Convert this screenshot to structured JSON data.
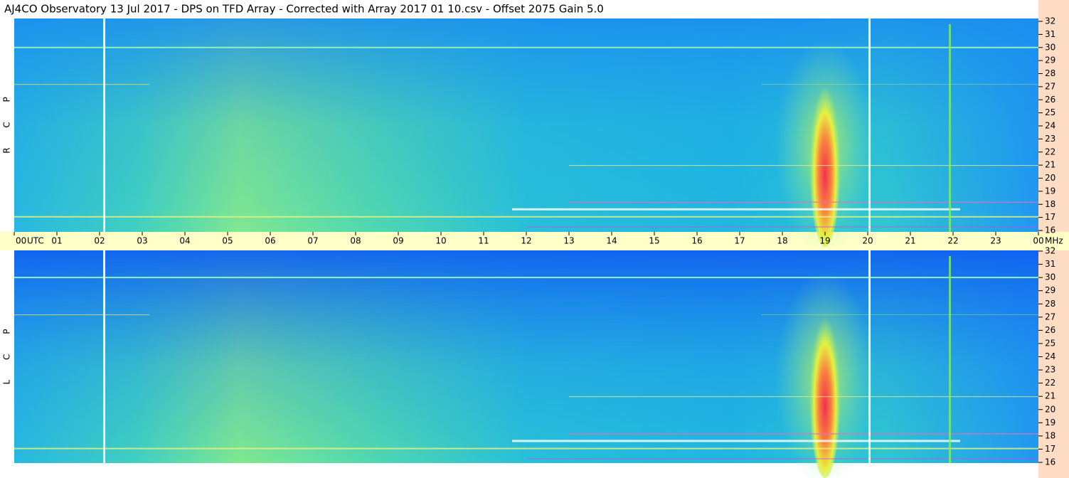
{
  "chart_data": {
    "type": "spectrogram",
    "title": "AJ4CO Observatory  13 Jul 2017  -  DPS on TFD Array  -  Corrected with Array 2017 01 10.csv  -  Offset 2075  Gain 5.0",
    "panels": [
      "R C P",
      "L C P"
    ],
    "xlabel": "UTC",
    "ylabel": "MHz",
    "xlim": [
      0,
      24
    ],
    "xticks": [
      {
        "value": 0,
        "label": "00"
      },
      {
        "value": 1,
        "label": "01"
      },
      {
        "value": 2,
        "label": "02"
      },
      {
        "value": 3,
        "label": "03"
      },
      {
        "value": 4,
        "label": "04"
      },
      {
        "value": 5,
        "label": "05"
      },
      {
        "value": 6,
        "label": "06"
      },
      {
        "value": 7,
        "label": "07"
      },
      {
        "value": 8,
        "label": "08"
      },
      {
        "value": 9,
        "label": "09"
      },
      {
        "value": 10,
        "label": "10"
      },
      {
        "value": 11,
        "label": "11"
      },
      {
        "value": 12,
        "label": "12"
      },
      {
        "value": 13,
        "label": "13"
      },
      {
        "value": 14,
        "label": "14"
      },
      {
        "value": 15,
        "label": "15"
      },
      {
        "value": 16,
        "label": "16"
      },
      {
        "value": 17,
        "label": "17"
      },
      {
        "value": 18,
        "label": "18"
      },
      {
        "value": 19,
        "label": "19"
      },
      {
        "value": 20,
        "label": "20"
      },
      {
        "value": 21,
        "label": "21"
      },
      {
        "value": 22,
        "label": "22"
      },
      {
        "value": 23,
        "label": "23"
      },
      {
        "value": 24,
        "label": "00"
      }
    ],
    "ylim": [
      16,
      32
    ],
    "yticks": [
      16,
      17,
      18,
      19,
      20,
      21,
      22,
      23,
      24,
      25,
      26,
      27,
      28,
      29,
      30,
      31,
      32
    ]
  }
}
